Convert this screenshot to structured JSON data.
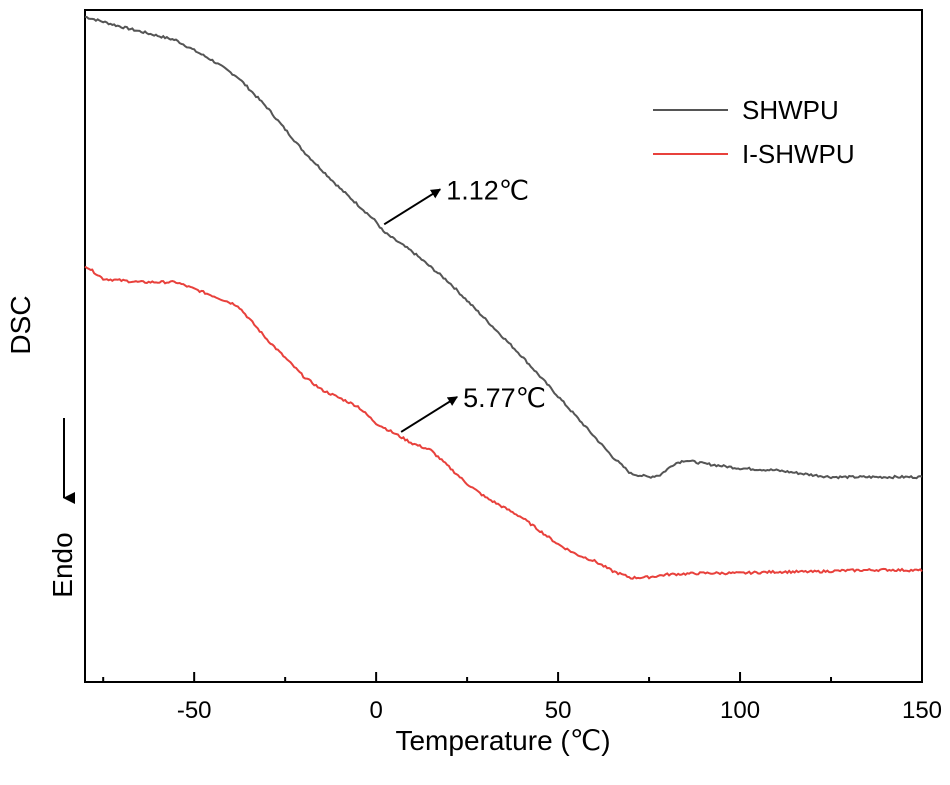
{
  "chart_data": {
    "type": "line",
    "title": "",
    "xlabel": "Temperature (℃)",
    "ylabel": "DSC",
    "ylabel_secondary": "Endo",
    "xlim": [
      -80,
      150
    ],
    "ylim": [
      0,
      100
    ],
    "xticks": [
      -50,
      0,
      50,
      100,
      150
    ],
    "xtick_labels": [
      "-50",
      "0",
      "50",
      "100",
      "150"
    ],
    "y_ticks_shown": false,
    "legend_position": "top-right",
    "colors": {
      "SHWPU": "#555555",
      "I-SHWPU": "#e8413c",
      "annotation": "#000000"
    },
    "series": [
      {
        "name": "SHWPU",
        "x": [
          -80,
          -70,
          -55,
          -45,
          -38,
          -30,
          -20,
          -10,
          0,
          2,
          10,
          20,
          30,
          40,
          50,
          60,
          65,
          70,
          75,
          78,
          82,
          85,
          90,
          100,
          110,
          120,
          125,
          130,
          140,
          150
        ],
        "y": [
          99,
          97.5,
          95.5,
          92.5,
          90,
          85.5,
          79,
          73.5,
          68.5,
          67,
          64,
          59.5,
          54,
          48.5,
          42.5,
          36.5,
          33.5,
          31,
          30.5,
          30.8,
          32.5,
          33,
          32.5,
          31.8,
          31.5,
          30.8,
          30.5,
          30.5,
          30.5,
          30.5
        ]
      },
      {
        "name": "I-SHWPU",
        "x": [
          -80,
          -75,
          -65,
          -55,
          -45,
          -38,
          -30,
          -20,
          -15,
          -5,
          0,
          5,
          10,
          15,
          20,
          25,
          30,
          40,
          50,
          55,
          60,
          65,
          70,
          75,
          80,
          90,
          100,
          110,
          120,
          130,
          140,
          150
        ],
        "y": [
          62,
          60,
          59.5,
          59.5,
          57.5,
          56,
          51,
          45.5,
          43.5,
          41,
          38.5,
          37,
          35.5,
          34.5,
          32,
          29.5,
          27.5,
          24.5,
          20.5,
          19,
          18,
          16.5,
          15.5,
          15.6,
          16,
          16.2,
          16.2,
          16.4,
          16.4,
          16.6,
          16.7,
          16.6
        ]
      }
    ],
    "annotations": [
      {
        "text": "1.12℃",
        "series": "SHWPU",
        "x": 1.12
      },
      {
        "text": "5.77℃",
        "series": "I-SHWPU",
        "x": 5.77
      }
    ]
  }
}
